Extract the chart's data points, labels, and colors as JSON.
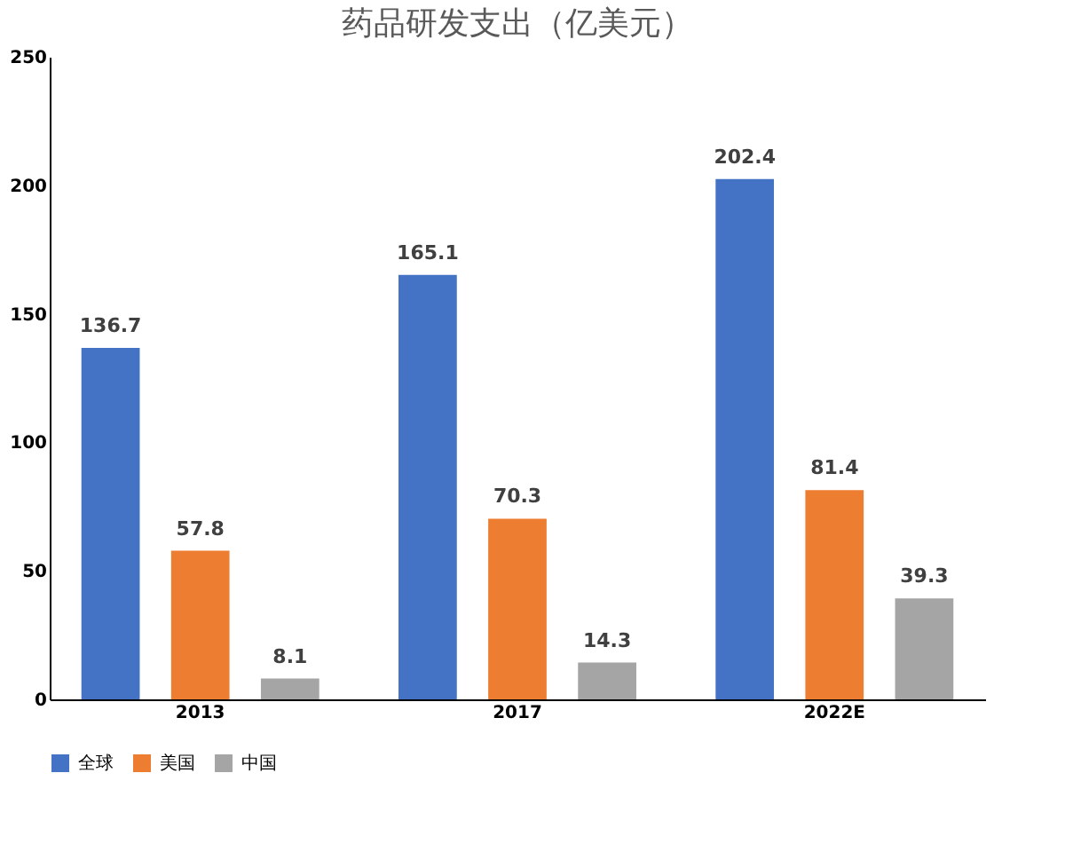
{
  "chart_data": {
    "type": "bar",
    "title": "药品研发支出（亿美元）",
    "categories": [
      "2013",
      "2017",
      "2022E"
    ],
    "series": [
      {
        "name": "全球",
        "color": "#4472c4",
        "values": [
          136.7,
          165.1,
          202.4
        ]
      },
      {
        "name": "美国",
        "color": "#ed7d31",
        "values": [
          57.8,
          70.3,
          81.4
        ]
      },
      {
        "name": "中国",
        "color": "#a5a5a5",
        "values": [
          8.1,
          14.3,
          39.3
        ]
      }
    ],
    "ylim": [
      0,
      250
    ],
    "yticks": [
      0,
      50,
      100,
      150,
      200,
      250
    ],
    "data_labels": true,
    "legend": "bottom",
    "grid": false
  }
}
